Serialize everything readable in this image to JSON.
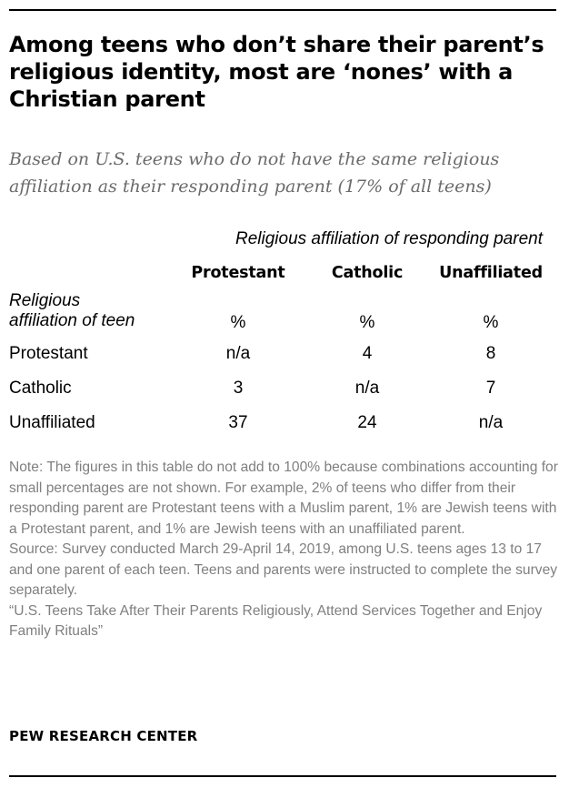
{
  "title": "Among teens who don’t share their parent’s religious identity, most are ‘nones’ with a Christian parent",
  "subtitle": "Based on U.S. teens who do not have the same religious affiliation as their responding parent (17% of all teens)",
  "chart_data": {
    "type": "table",
    "column_group_header": "Religious affiliation of responding parent",
    "row_header": "Religious affiliation of teen",
    "columns": [
      "Protestant",
      "Catholic",
      "Unaffiliated"
    ],
    "units": [
      "%",
      "%",
      "%"
    ],
    "rows": [
      {
        "label": "Protestant",
        "values": [
          "n/a",
          "4",
          "8"
        ]
      },
      {
        "label": "Catholic",
        "values": [
          "3",
          "n/a",
          "7"
        ]
      },
      {
        "label": "Unaffiliated",
        "values": [
          "37",
          "24",
          "n/a"
        ]
      }
    ]
  },
  "notes": {
    "note": "Note: The figures in this table do not add to 100% because combinations accounting for small percentages are not shown. For example, 2% of teens who differ from their responding parent are Protestant teens with a Muslim parent, 1% are Jewish teens with a Protestant parent, and 1% are Jewish teens with an unaffiliated parent.",
    "source": "Source: Survey conducted March 29-April 14, 2019, among U.S. teens ages 13 to 17 and one parent of each teen. Teens and parents were instructed to complete the survey separately.",
    "report": "“U.S. Teens Take After Their Parents Religiously, Attend Services Together and Enjoy Family Rituals”"
  },
  "brand": "PEW RESEARCH CENTER"
}
